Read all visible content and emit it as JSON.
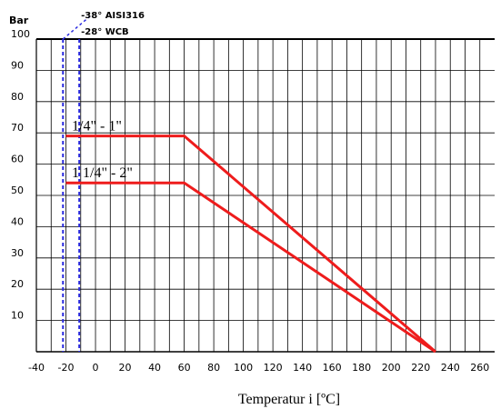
{
  "chart_data": {
    "type": "line",
    "title": "",
    "y_unit": "Bar",
    "xlabel": "Temperatur i [ºC]",
    "xlim": [
      -40,
      270
    ],
    "ylim": [
      0,
      100
    ],
    "x_ticks": [
      -40,
      -20,
      0,
      20,
      40,
      60,
      80,
      100,
      120,
      140,
      160,
      180,
      200,
      220,
      240,
      260
    ],
    "y_ticks": [
      10,
      20,
      30,
      40,
      50,
      60,
      70,
      80,
      90,
      100
    ],
    "grid": true,
    "series": [
      {
        "name": "1/4\" - 1\"",
        "color": "#ee1c1c",
        "x": [
          -20,
          60,
          230
        ],
        "y": [
          69,
          69,
          0
        ]
      },
      {
        "name": "1 1/4\" - 2\"",
        "color": "#ee1c1c",
        "x": [
          -20,
          60,
          230
        ],
        "y": [
          54,
          54,
          0
        ]
      }
    ],
    "reference_lines": [
      {
        "label": "-38° AISI316",
        "x": -22,
        "color": "#2b2be0"
      },
      {
        "label": "-28° WCB",
        "x": -11,
        "color": "#2b2be0"
      }
    ]
  }
}
